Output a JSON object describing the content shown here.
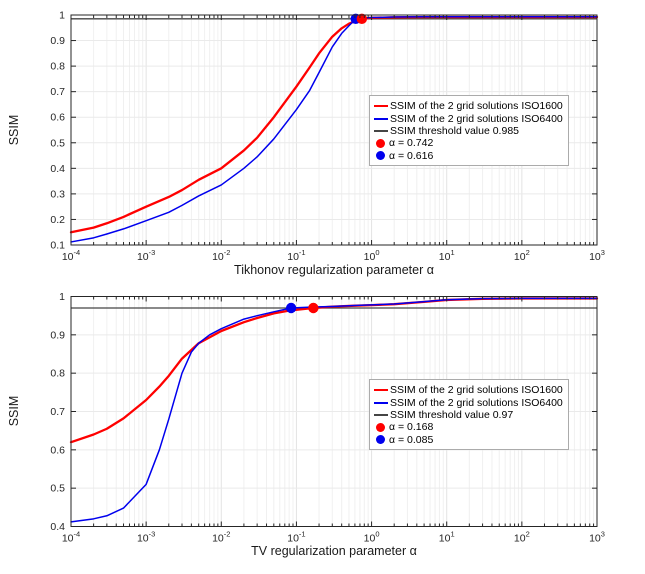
{
  "chart_data": [
    {
      "type": "line",
      "title": "",
      "xlabel": "Tikhonov regularization parameter α",
      "ylabel": "SSIM",
      "x_scale": "log",
      "xlim": [
        0.0001,
        1000
      ],
      "ylim": [
        0.1,
        1
      ],
      "xtick_exponents": [
        -4,
        -3,
        -2,
        -1,
        0,
        1,
        2,
        3
      ],
      "yticks": [
        0.1,
        0.2,
        0.3,
        0.4,
        0.5,
        0.6,
        0.7,
        0.8,
        0.9,
        1
      ],
      "ytick_labels": [
        "0.1",
        "0.2",
        "0.3",
        "0.4",
        "0.5",
        "0.6",
        "0.7",
        "0.8",
        "0.9",
        "1"
      ],
      "grid": "major-and-log-minor",
      "legend_position": "middle-right",
      "series": [
        {
          "name": "SSIM of the 2 grid solutions ISO1600",
          "color": "#ff0000",
          "width": 2.3,
          "x": [
            0.0001,
            0.0002,
            0.0003,
            0.0005,
            0.001,
            0.002,
            0.003,
            0.005,
            0.01,
            0.02,
            0.03,
            0.05,
            0.1,
            0.15,
            0.2,
            0.3,
            0.4,
            0.5,
            0.616,
            0.742,
            1,
            2,
            5,
            10,
            100,
            1000
          ],
          "y": [
            0.15,
            0.168,
            0.185,
            0.21,
            0.25,
            0.288,
            0.315,
            0.355,
            0.4,
            0.47,
            0.52,
            0.6,
            0.72,
            0.795,
            0.85,
            0.915,
            0.948,
            0.966,
            0.977,
            0.985,
            0.989,
            0.991,
            0.992,
            0.992,
            0.992,
            0.992
          ]
        },
        {
          "name": "SSIM of the 2 grid solutions ISO6400",
          "color": "#0000ee",
          "width": 1.5,
          "x": [
            0.0001,
            0.0002,
            0.0003,
            0.0005,
            0.001,
            0.002,
            0.003,
            0.005,
            0.01,
            0.02,
            0.03,
            0.05,
            0.1,
            0.15,
            0.2,
            0.3,
            0.4,
            0.5,
            0.616,
            0.742,
            1,
            2,
            5,
            10,
            100,
            1000
          ],
          "y": [
            0.112,
            0.128,
            0.143,
            0.163,
            0.195,
            0.228,
            0.255,
            0.292,
            0.335,
            0.4,
            0.445,
            0.515,
            0.63,
            0.705,
            0.775,
            0.875,
            0.928,
            0.958,
            0.985,
            0.988,
            0.99,
            0.992,
            0.993,
            0.993,
            0.993,
            0.993
          ]
        }
      ],
      "threshold": {
        "name": "SSIM threshold value 0.985",
        "value": 0.985,
        "color": "#454545"
      },
      "markers": [
        {
          "name": "α = 0.742",
          "x": 0.742,
          "y": 0.985,
          "color": "#ff0000"
        },
        {
          "name": "α = 0.616",
          "x": 0.616,
          "y": 0.985,
          "color": "#0000ee"
        }
      ]
    },
    {
      "type": "line",
      "title": "",
      "xlabel": "TV regularization parameter α",
      "ylabel": "SSIM",
      "x_scale": "log",
      "xlim": [
        0.0001,
        1000
      ],
      "ylim": [
        0.4,
        1
      ],
      "xtick_exponents": [
        -4,
        -3,
        -2,
        -1,
        0,
        1,
        2,
        3
      ],
      "yticks": [
        0.4,
        0.5,
        0.6,
        0.7,
        0.8,
        0.9,
        1
      ],
      "ytick_labels": [
        "0.4",
        "0.5",
        "0.6",
        "0.7",
        "0.8",
        "0.9",
        "1"
      ],
      "grid": "major-and-log-minor",
      "legend_position": "middle-right",
      "series": [
        {
          "name": "SSIM of the 2 grid solutions ISO1600",
          "color": "#ff0000",
          "width": 2.3,
          "x": [
            0.0001,
            0.0002,
            0.0003,
            0.0005,
            0.001,
            0.0015,
            0.002,
            0.003,
            0.005,
            0.01,
            0.02,
            0.03,
            0.05,
            0.085,
            0.168,
            0.3,
            0.6,
            1,
            2,
            5,
            10,
            30,
            100,
            1000
          ],
          "y": [
            0.62,
            0.64,
            0.655,
            0.682,
            0.73,
            0.765,
            0.793,
            0.838,
            0.878,
            0.91,
            0.933,
            0.944,
            0.956,
            0.964,
            0.97,
            0.9735,
            0.976,
            0.9775,
            0.98,
            0.986,
            0.991,
            0.994,
            0.995,
            0.995
          ]
        },
        {
          "name": "SSIM of the 2 grid solutions ISO6400",
          "color": "#0000ee",
          "width": 1.5,
          "x": [
            0.0001,
            0.0002,
            0.0003,
            0.0005,
            0.001,
            0.0015,
            0.002,
            0.003,
            0.004,
            0.005,
            0.007,
            0.01,
            0.02,
            0.03,
            0.05,
            0.085,
            0.168,
            0.3,
            0.6,
            1,
            2,
            5,
            10,
            30,
            100,
            1000
          ],
          "y": [
            0.412,
            0.42,
            0.428,
            0.448,
            0.51,
            0.6,
            0.68,
            0.8,
            0.855,
            0.878,
            0.9,
            0.916,
            0.941,
            0.95,
            0.96,
            0.97,
            0.9725,
            0.974,
            0.9765,
            0.978,
            0.9805,
            0.9865,
            0.9915,
            0.9945,
            0.995,
            0.995
          ]
        }
      ],
      "threshold": {
        "name": "SSIM threshold value 0.97",
        "value": 0.97,
        "color": "#454545"
      },
      "markers": [
        {
          "name": "α = 0.168",
          "x": 0.168,
          "y": 0.97,
          "color": "#ff0000"
        },
        {
          "name": "α = 0.085",
          "x": 0.085,
          "y": 0.97,
          "color": "#0000ee"
        }
      ]
    }
  ]
}
